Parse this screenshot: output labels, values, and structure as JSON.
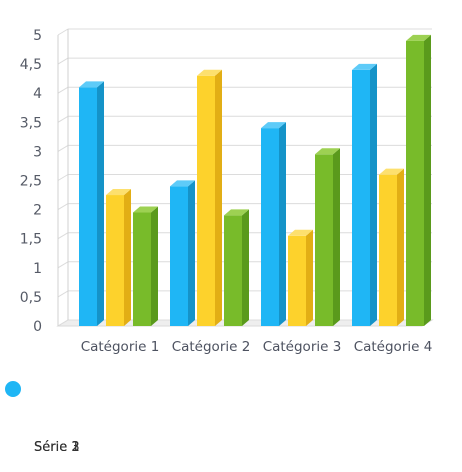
{
  "chart_data": {
    "type": "bar",
    "style": "3d-clustered-column",
    "categories": [
      "Catégorie 1",
      "Catégorie 2",
      "Catégorie 3",
      "Catégorie 4"
    ],
    "series": [
      {
        "values": [
          4.1,
          2.4,
          3.4,
          4.4
        ],
        "color": "#1fb6f5",
        "side_color": "#1593c8",
        "top_color": "#5ecbf8"
      },
      {
        "values": [
          2.25,
          4.3,
          1.55,
          2.6
        ],
        "color": "#fdd22c",
        "side_color": "#e2ae15",
        "top_color": "#fde06e"
      },
      {
        "values": [
          1.95,
          1.9,
          2.95,
          4.9
        ],
        "color": "#78bb2a",
        "side_color": "#5a9a1c",
        "top_color": "#9dd152"
      }
    ],
    "ylim": [
      0,
      5
    ],
    "yticks": [
      "0",
      "0,5",
      "1",
      "1,5",
      "2",
      "2,5",
      "3",
      "3,5",
      "4",
      "4,5",
      "5"
    ],
    "grid": true,
    "legend": {
      "marker_color": "#1fb6f5",
      "overlapping_texts": [
        "Série 1",
        "Série 2",
        "Série 3"
      ]
    }
  }
}
